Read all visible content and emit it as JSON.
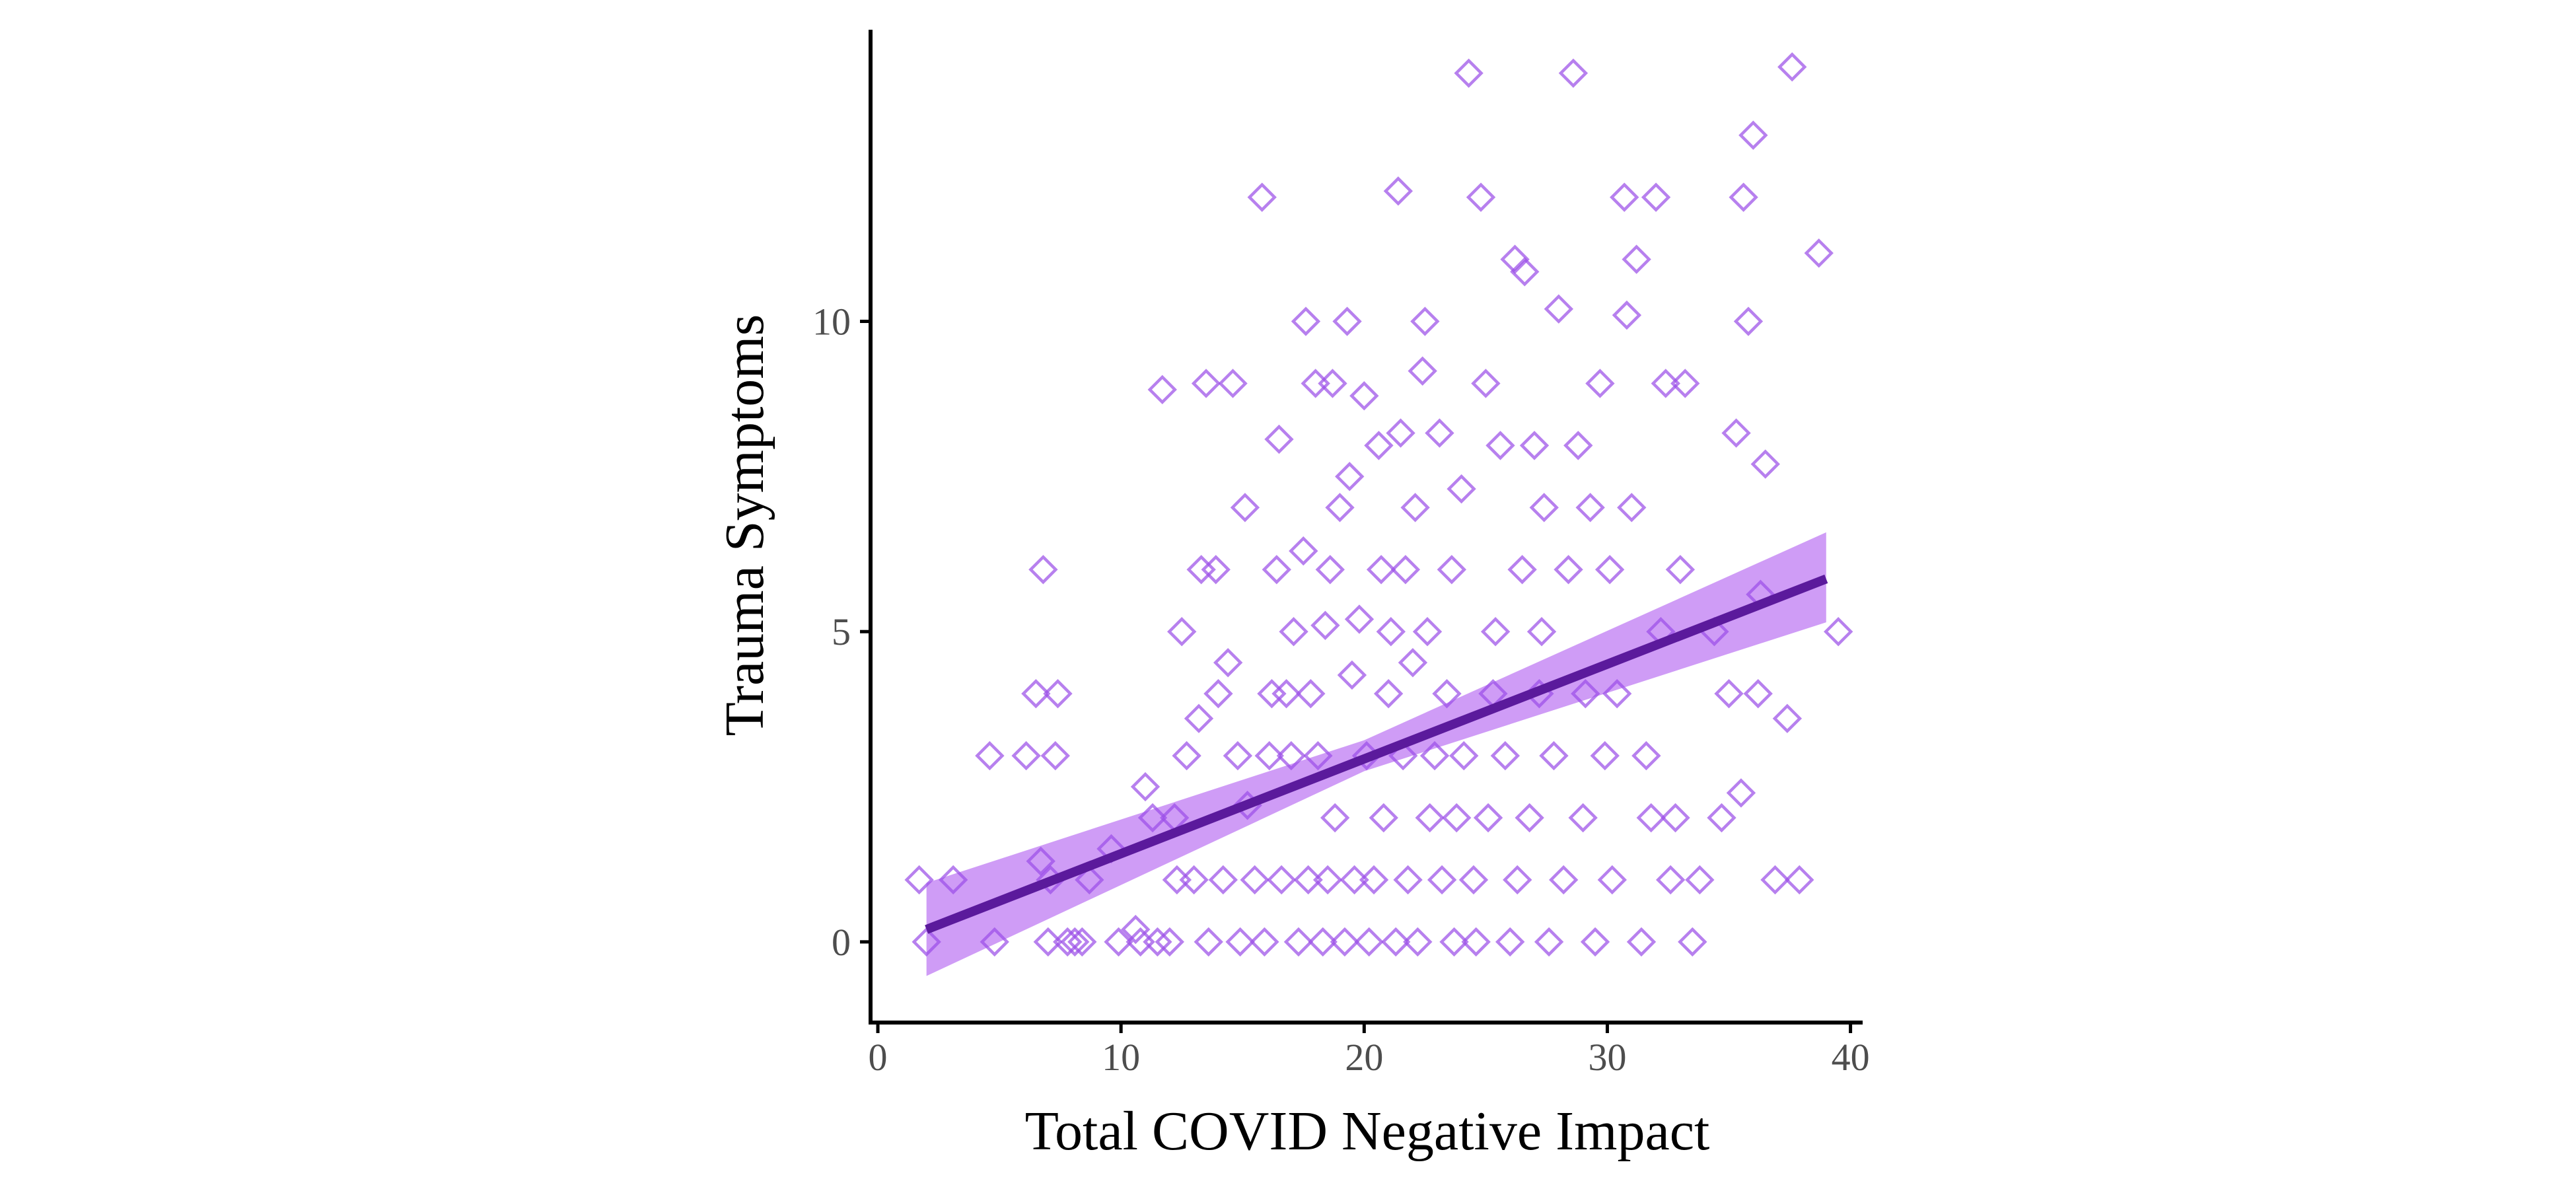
{
  "chart_data": {
    "type": "scatter",
    "title": "",
    "xlabel": "Total COVID Negative Impact",
    "ylabel": "Trauma Symptoms",
    "xlim": [
      -0.3,
      40.5
    ],
    "ylim": [
      -1.3,
      14.7
    ],
    "x_ticks": [
      0,
      10,
      20,
      30,
      40
    ],
    "y_ticks": [
      0,
      5,
      10
    ],
    "x_tick_labels": [
      "0",
      "10",
      "20",
      "30",
      "40"
    ],
    "y_tick_labels": [
      "0",
      "5",
      "10"
    ],
    "grid": false,
    "legend": "none",
    "marker": "open-diamond",
    "colors": {
      "points": "#9b4fe8",
      "line": "#5b1a9c",
      "band": "#c78bf5",
      "axis": "#000000"
    },
    "trend_line": {
      "x": [
        2,
        39
      ],
      "y": [
        0.2,
        5.85
      ]
    },
    "confidence_band": {
      "x": [
        2,
        20,
        39
      ],
      "lower": [
        -0.55,
        2.75,
        5.15
      ],
      "upper": [
        0.95,
        3.25,
        6.6
      ]
    },
    "points": [
      [
        1.7,
        1
      ],
      [
        2,
        0
      ],
      [
        3.1,
        1
      ],
      [
        4.6,
        3
      ],
      [
        4.8,
        0
      ],
      [
        6.1,
        3
      ],
      [
        6.5,
        4
      ],
      [
        6.7,
        1.3
      ],
      [
        6.8,
        6
      ],
      [
        7,
        0
      ],
      [
        7.1,
        1
      ],
      [
        7.3,
        3
      ],
      [
        7.4,
        4
      ],
      [
        7.8,
        0
      ],
      [
        8.1,
        0
      ],
      [
        8.4,
        0
      ],
      [
        8.7,
        1
      ],
      [
        9.6,
        1.5
      ],
      [
        9.9,
        0
      ],
      [
        10.6,
        0.2
      ],
      [
        10.8,
        0
      ],
      [
        11,
        2.5
      ],
      [
        11.3,
        2
      ],
      [
        11.5,
        0
      ],
      [
        11.7,
        8.9
      ],
      [
        12,
        0
      ],
      [
        12.2,
        2
      ],
      [
        12.3,
        1
      ],
      [
        12.5,
        5
      ],
      [
        12.7,
        3
      ],
      [
        13,
        1
      ],
      [
        13.2,
        3.6
      ],
      [
        13.3,
        6
      ],
      [
        13.5,
        9
      ],
      [
        13.6,
        0
      ],
      [
        13.9,
        6
      ],
      [
        14,
        4
      ],
      [
        14.2,
        1
      ],
      [
        14.4,
        4.5
      ],
      [
        14.6,
        9
      ],
      [
        14.8,
        3
      ],
      [
        14.9,
        0
      ],
      [
        15.1,
        7
      ],
      [
        15.2,
        2.2
      ],
      [
        15.5,
        1
      ],
      [
        15.8,
        12
      ],
      [
        15.9,
        0
      ],
      [
        16.1,
        3
      ],
      [
        16.2,
        4
      ],
      [
        16.4,
        6
      ],
      [
        16.5,
        8.1
      ],
      [
        16.6,
        1
      ],
      [
        16.8,
        4
      ],
      [
        17,
        3
      ],
      [
        17.1,
        5
      ],
      [
        17.3,
        0
      ],
      [
        17.5,
        6.3
      ],
      [
        17.6,
        10
      ],
      [
        17.7,
        1
      ],
      [
        17.8,
        4
      ],
      [
        18,
        9
      ],
      [
        18.1,
        3
      ],
      [
        18.3,
        0
      ],
      [
        18.4,
        5.1
      ],
      [
        18.5,
        1
      ],
      [
        18.6,
        6
      ],
      [
        18.7,
        9
      ],
      [
        18.8,
        2
      ],
      [
        19,
        7
      ],
      [
        19.2,
        0
      ],
      [
        19.3,
        10
      ],
      [
        19.4,
        7.5
      ],
      [
        19.5,
        4.3
      ],
      [
        19.6,
        1
      ],
      [
        19.8,
        5.2
      ],
      [
        20,
        8.8
      ],
      [
        20.1,
        3
      ],
      [
        20.2,
        0
      ],
      [
        20.4,
        1
      ],
      [
        20.6,
        8
      ],
      [
        20.7,
        6
      ],
      [
        20.8,
        2
      ],
      [
        21,
        4
      ],
      [
        21.1,
        5
      ],
      [
        21.3,
        0
      ],
      [
        21.4,
        12.1
      ],
      [
        21.5,
        8.2
      ],
      [
        21.6,
        3
      ],
      [
        21.7,
        6
      ],
      [
        21.8,
        1
      ],
      [
        22,
        4.5
      ],
      [
        22.1,
        7
      ],
      [
        22.2,
        0
      ],
      [
        22.4,
        9.2
      ],
      [
        22.5,
        10
      ],
      [
        22.6,
        5
      ],
      [
        22.7,
        2
      ],
      [
        22.9,
        3
      ],
      [
        23.1,
        8.2
      ],
      [
        23.2,
        1
      ],
      [
        23.4,
        4
      ],
      [
        23.6,
        6
      ],
      [
        23.7,
        0
      ],
      [
        23.8,
        2
      ],
      [
        24,
        7.3
      ],
      [
        24.1,
        3
      ],
      [
        24.3,
        14
      ],
      [
        24.5,
        1
      ],
      [
        24.6,
        0
      ],
      [
        24.8,
        12
      ],
      [
        25,
        9
      ],
      [
        25.1,
        2
      ],
      [
        25.3,
        4
      ],
      [
        25.4,
        5
      ],
      [
        25.6,
        8
      ],
      [
        25.8,
        3
      ],
      [
        26,
        0
      ],
      [
        26.2,
        11
      ],
      [
        26.3,
        1
      ],
      [
        26.5,
        6
      ],
      [
        26.6,
        10.8
      ],
      [
        26.8,
        2
      ],
      [
        27,
        8
      ],
      [
        27.2,
        4
      ],
      [
        27.3,
        5
      ],
      [
        27.4,
        7
      ],
      [
        27.6,
        0
      ],
      [
        27.8,
        3
      ],
      [
        28,
        10.2
      ],
      [
        28.2,
        1
      ],
      [
        28.4,
        6
      ],
      [
        28.6,
        14
      ],
      [
        28.8,
        8
      ],
      [
        29,
        2
      ],
      [
        29.1,
        4
      ],
      [
        29.3,
        7
      ],
      [
        29.5,
        0
      ],
      [
        29.7,
        9
      ],
      [
        29.9,
        3
      ],
      [
        30.1,
        6
      ],
      [
        30.2,
        1
      ],
      [
        30.4,
        4
      ],
      [
        30.7,
        12
      ],
      [
        30.8,
        10.1
      ],
      [
        31,
        7
      ],
      [
        31.2,
        11
      ],
      [
        31.4,
        0
      ],
      [
        31.6,
        3
      ],
      [
        31.8,
        2
      ],
      [
        32,
        12
      ],
      [
        32.2,
        5
      ],
      [
        32.4,
        9
      ],
      [
        32.6,
        1
      ],
      [
        32.8,
        2
      ],
      [
        33,
        6
      ],
      [
        33.2,
        9
      ],
      [
        33.5,
        0
      ],
      [
        33.8,
        1
      ],
      [
        34.4,
        5
      ],
      [
        34.7,
        2
      ],
      [
        35,
        4
      ],
      [
        35.3,
        8.2
      ],
      [
        35.5,
        2.4
      ],
      [
        35.6,
        12
      ],
      [
        35.8,
        10
      ],
      [
        36,
        13
      ],
      [
        36.2,
        4
      ],
      [
        36.3,
        5.6
      ],
      [
        36.5,
        7.7
      ],
      [
        36.9,
        1
      ],
      [
        37.4,
        3.6
      ],
      [
        37.6,
        14.1
      ],
      [
        37.9,
        1
      ],
      [
        38.7,
        11.1
      ],
      [
        39.5,
        5
      ]
    ]
  }
}
